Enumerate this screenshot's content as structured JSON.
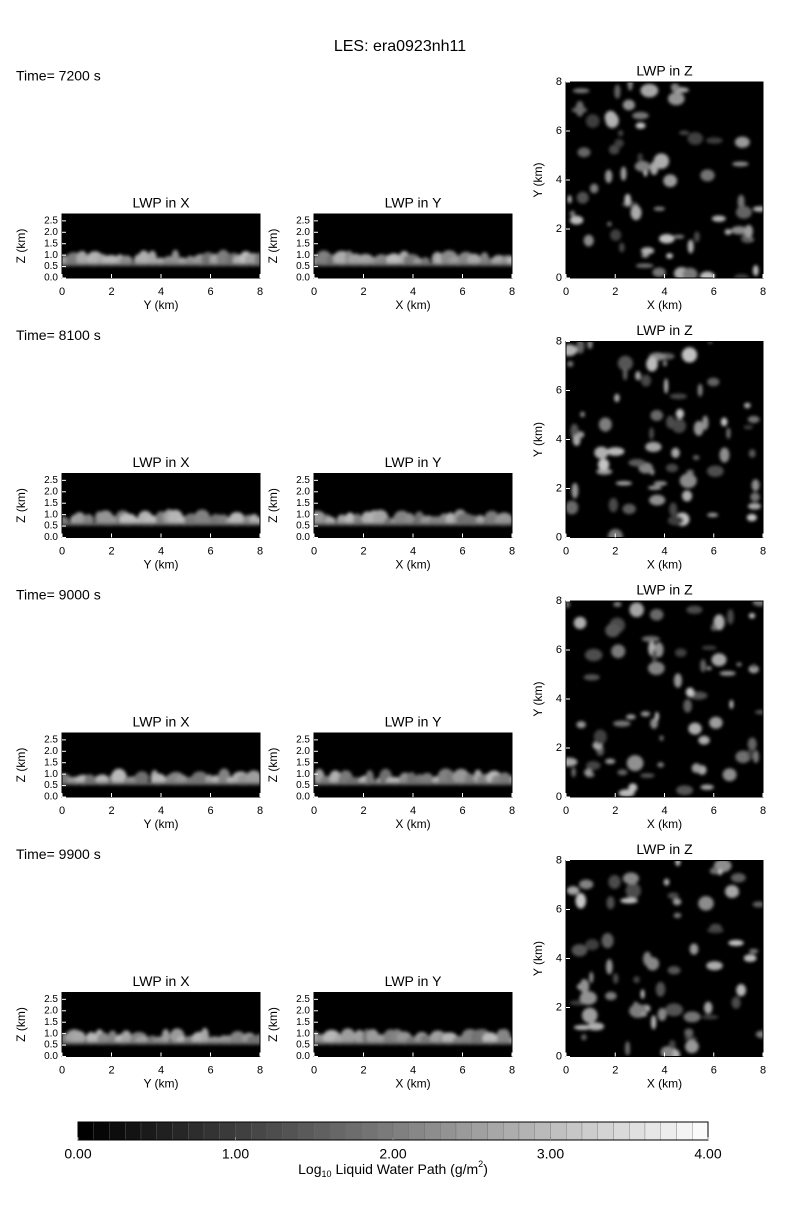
{
  "title": "LES: era0923nh11",
  "rows": [
    {
      "time": "Time= 7200 s",
      "panels": [
        {
          "title": "LWP in X",
          "xlabel": "Y (km)",
          "ylabel": "Z (km)",
          "xlim": [
            0,
            8
          ],
          "ylim": [
            0,
            2.8
          ],
          "xticks": [
            0,
            2,
            4,
            6,
            8
          ],
          "yticks": [
            {
              "value": 0,
              "label": "0.0"
            },
            {
              "value": 0.5,
              "label": "0.5"
            },
            {
              "value": 1,
              "label": "1.0"
            },
            {
              "value": 1.5,
              "label": "1.5"
            },
            {
              "value": 2,
              "label": "2.0"
            },
            {
              "value": 2.5,
              "label": "2.5"
            }
          ]
        },
        {
          "title": "LWP in Y",
          "xlabel": "X (km)",
          "ylabel": "Z (km)",
          "xlim": [
            0,
            8
          ],
          "ylim": [
            0,
            2.8
          ],
          "xticks": [
            0,
            2,
            4,
            6,
            8
          ],
          "yticks": [
            {
              "value": 0,
              "label": "0.0"
            },
            {
              "value": 0.5,
              "label": "0.5"
            },
            {
              "value": 1,
              "label": "1.0"
            },
            {
              "value": 1.5,
              "label": "1.5"
            },
            {
              "value": 2,
              "label": "2.0"
            },
            {
              "value": 2.5,
              "label": "2.5"
            }
          ]
        },
        {
          "title": "LWP in Z",
          "xlabel": "X (km)",
          "ylabel": "Y (km)",
          "xlim": [
            0,
            8
          ],
          "ylim": [
            0,
            8
          ],
          "xticks": [
            0,
            2,
            4,
            6,
            8
          ],
          "yticks": [
            0,
            2,
            4,
            6,
            8
          ]
        }
      ]
    },
    {
      "time": "Time= 8100 s",
      "panels": [
        {
          "title": "LWP in X",
          "xlabel": "Y (km)",
          "ylabel": "Z (km)",
          "xlim": [
            0,
            8
          ],
          "ylim": [
            0,
            2.8
          ],
          "xticks": [
            0,
            2,
            4,
            6,
            8
          ],
          "yticks": [
            {
              "value": 0,
              "label": "0.0"
            },
            {
              "value": 0.5,
              "label": "0.5"
            },
            {
              "value": 1,
              "label": "1.0"
            },
            {
              "value": 1.5,
              "label": "1.5"
            },
            {
              "value": 2,
              "label": "2.0"
            },
            {
              "value": 2.5,
              "label": "2.5"
            }
          ]
        },
        {
          "title": "LWP in Y",
          "xlabel": "X (km)",
          "ylabel": "Z (km)",
          "xlim": [
            0,
            8
          ],
          "ylim": [
            0,
            2.8
          ],
          "xticks": [
            0,
            2,
            4,
            6,
            8
          ],
          "yticks": [
            {
              "value": 0,
              "label": "0.0"
            },
            {
              "value": 0.5,
              "label": "0.5"
            },
            {
              "value": 1,
              "label": "1.0"
            },
            {
              "value": 1.5,
              "label": "1.5"
            },
            {
              "value": 2,
              "label": "2.0"
            },
            {
              "value": 2.5,
              "label": "2.5"
            }
          ]
        },
        {
          "title": "LWP in Z",
          "xlabel": "X (km)",
          "ylabel": "Y (km)",
          "xlim": [
            0,
            8
          ],
          "ylim": [
            0,
            8
          ],
          "xticks": [
            0,
            2,
            4,
            6,
            8
          ],
          "yticks": [
            0,
            2,
            4,
            6,
            8
          ]
        }
      ]
    },
    {
      "time": "Time= 9000 s",
      "panels": [
        {
          "title": "LWP in X",
          "xlabel": "Y (km)",
          "ylabel": "Z (km)",
          "xlim": [
            0,
            8
          ],
          "ylim": [
            0,
            2.8
          ],
          "xticks": [
            0,
            2,
            4,
            6,
            8
          ],
          "yticks": [
            {
              "value": 0,
              "label": "0.0"
            },
            {
              "value": 0.5,
              "label": "0.5"
            },
            {
              "value": 1,
              "label": "1.0"
            },
            {
              "value": 1.5,
              "label": "1.5"
            },
            {
              "value": 2,
              "label": "2.0"
            },
            {
              "value": 2.5,
              "label": "2.5"
            }
          ]
        },
        {
          "title": "LWP in Y",
          "xlabel": "X (km)",
          "ylabel": "Z (km)",
          "xlim": [
            0,
            8
          ],
          "ylim": [
            0,
            2.8
          ],
          "xticks": [
            0,
            2,
            4,
            6,
            8
          ],
          "yticks": [
            {
              "value": 0,
              "label": "0.0"
            },
            {
              "value": 0.5,
              "label": "0.5"
            },
            {
              "value": 1,
              "label": "1.0"
            },
            {
              "value": 1.5,
              "label": "1.5"
            },
            {
              "value": 2,
              "label": "2.0"
            },
            {
              "value": 2.5,
              "label": "2.5"
            }
          ]
        },
        {
          "title": "LWP in Z",
          "xlabel": "X (km)",
          "ylabel": "Y (km)",
          "xlim": [
            0,
            8
          ],
          "ylim": [
            0,
            8
          ],
          "xticks": [
            0,
            2,
            4,
            6,
            8
          ],
          "yticks": [
            0,
            2,
            4,
            6,
            8
          ]
        }
      ]
    },
    {
      "time": "Time= 9900 s",
      "panels": [
        {
          "title": "LWP in X",
          "xlabel": "Y (km)",
          "ylabel": "Z (km)",
          "xlim": [
            0,
            8
          ],
          "ylim": [
            0,
            2.8
          ],
          "xticks": [
            0,
            2,
            4,
            6,
            8
          ],
          "yticks": [
            {
              "value": 0,
              "label": "0.0"
            },
            {
              "value": 0.5,
              "label": "0.5"
            },
            {
              "value": 1,
              "label": "1.0"
            },
            {
              "value": 1.5,
              "label": "1.5"
            },
            {
              "value": 2,
              "label": "2.0"
            },
            {
              "value": 2.5,
              "label": "2.5"
            }
          ]
        },
        {
          "title": "LWP in Y",
          "xlabel": "X (km)",
          "ylabel": "Z (km)",
          "xlim": [
            0,
            8
          ],
          "ylim": [
            0,
            2.8
          ],
          "xticks": [
            0,
            2,
            4,
            6,
            8
          ],
          "yticks": [
            {
              "value": 0,
              "label": "0.0"
            },
            {
              "value": 0.5,
              "label": "0.5"
            },
            {
              "value": 1,
              "label": "1.0"
            },
            {
              "value": 1.5,
              "label": "1.5"
            },
            {
              "value": 2,
              "label": "2.0"
            },
            {
              "value": 2.5,
              "label": "2.5"
            }
          ]
        },
        {
          "title": "LWP in Z",
          "xlabel": "X (km)",
          "ylabel": "Y (km)",
          "xlim": [
            0,
            8
          ],
          "ylim": [
            0,
            8
          ],
          "xticks": [
            0,
            2,
            4,
            6,
            8
          ],
          "yticks": [
            0,
            2,
            4,
            6,
            8
          ]
        }
      ]
    }
  ],
  "colorbar": {
    "range": [
      0,
      4
    ],
    "ticks": [
      {
        "value": 0,
        "label": "0.00"
      },
      {
        "value": 1,
        "label": "1.00"
      },
      {
        "value": 2,
        "label": "2.00"
      },
      {
        "value": 3,
        "label": "3.00"
      },
      {
        "value": 4,
        "label": "4.00"
      }
    ],
    "label": [
      "Log",
      "10",
      "Liquid Water Path (g/m",
      "2",
      ")"
    ]
  }
}
